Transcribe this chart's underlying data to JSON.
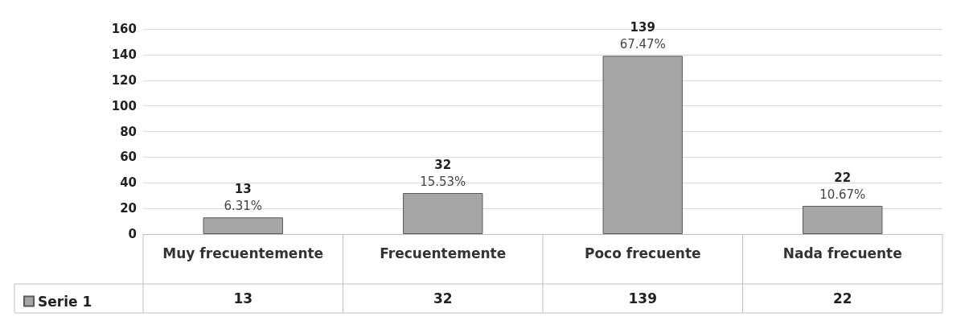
{
  "chart_data": {
    "type": "bar",
    "categories": [
      "Muy frecuentemente",
      "Frecuentemente",
      "Poco frecuente",
      "Nada frecuente"
    ],
    "series": [
      {
        "name": "Serie 1",
        "color": "#a6a6a6",
        "values": [
          13,
          32,
          139,
          22
        ],
        "value_labels": [
          "13",
          "32",
          "139",
          "22"
        ]
      }
    ],
    "annotations": [
      {
        "text": "6.31%",
        "x": "Muy frecuentemente",
        "y": 13
      },
      {
        "text": "15.53%",
        "x": "Frecuentemente",
        "y": 32
      },
      {
        "text": "67.47%",
        "x": "Poco frecuente",
        "y": 139
      },
      {
        "text": "10.67%",
        "x": "Nada frecuente",
        "y": 22
      }
    ],
    "ylim": [
      0,
      160
    ],
    "yticks": [
      0,
      20,
      40,
      60,
      80,
      100,
      120,
      140,
      160
    ],
    "grid": "y",
    "legend": "bottom left",
    "data_labels": true
  }
}
